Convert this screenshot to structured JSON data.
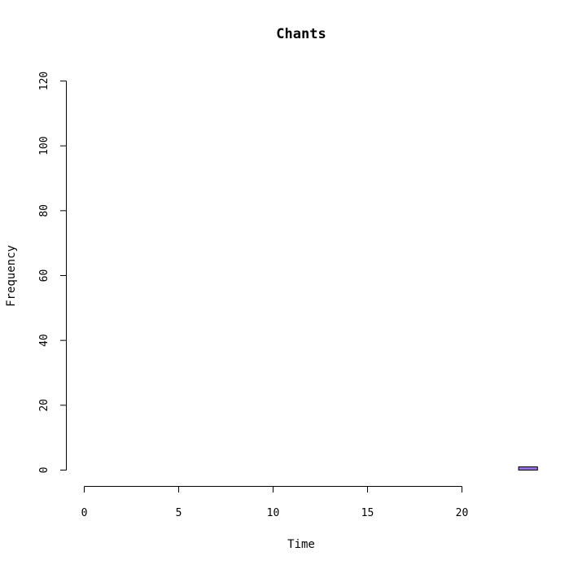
{
  "chart_data": {
    "type": "bar",
    "title": "Chants",
    "xlabel": "Time",
    "ylabel": "Frequency",
    "xlim": [
      0,
      24
    ],
    "ylim": [
      0,
      120
    ],
    "x_ticks": [
      "0",
      "5",
      "10",
      "15",
      "20"
    ],
    "y_ticks": [
      "0",
      "20",
      "40",
      "60",
      "80",
      "100",
      "120"
    ],
    "bins": [
      {
        "start": 0,
        "end": 1,
        "value": 0
      },
      {
        "start": 1,
        "end": 2,
        "value": 0
      },
      {
        "start": 2,
        "end": 3,
        "value": 0
      },
      {
        "start": 3,
        "end": 4,
        "value": 0
      },
      {
        "start": 4,
        "end": 5,
        "value": 0
      },
      {
        "start": 5,
        "end": 6,
        "value": 0
      },
      {
        "start": 6,
        "end": 7,
        "value": 0
      },
      {
        "start": 7,
        "end": 8,
        "value": 0
      },
      {
        "start": 8,
        "end": 9,
        "value": 0
      },
      {
        "start": 9,
        "end": 10,
        "value": 0
      },
      {
        "start": 10,
        "end": 11,
        "value": 0
      },
      {
        "start": 11,
        "end": 12,
        "value": 0
      },
      {
        "start": 12,
        "end": 13,
        "value": 0
      },
      {
        "start": 13,
        "end": 14,
        "value": 0
      },
      {
        "start": 14,
        "end": 15,
        "value": 0
      },
      {
        "start": 15,
        "end": 16,
        "value": 0
      },
      {
        "start": 16,
        "end": 17,
        "value": 0
      },
      {
        "start": 17,
        "end": 18,
        "value": 0
      },
      {
        "start": 18,
        "end": 19,
        "value": 0
      },
      {
        "start": 19,
        "end": 20,
        "value": 0
      },
      {
        "start": 20,
        "end": 21,
        "value": 0
      },
      {
        "start": 21,
        "end": 22,
        "value": 0
      },
      {
        "start": 22,
        "end": 23,
        "value": 0
      },
      {
        "start": 23,
        "end": 24,
        "value": 1
      }
    ],
    "bar_color": "#9370DB",
    "grid": false,
    "legend": "none"
  }
}
